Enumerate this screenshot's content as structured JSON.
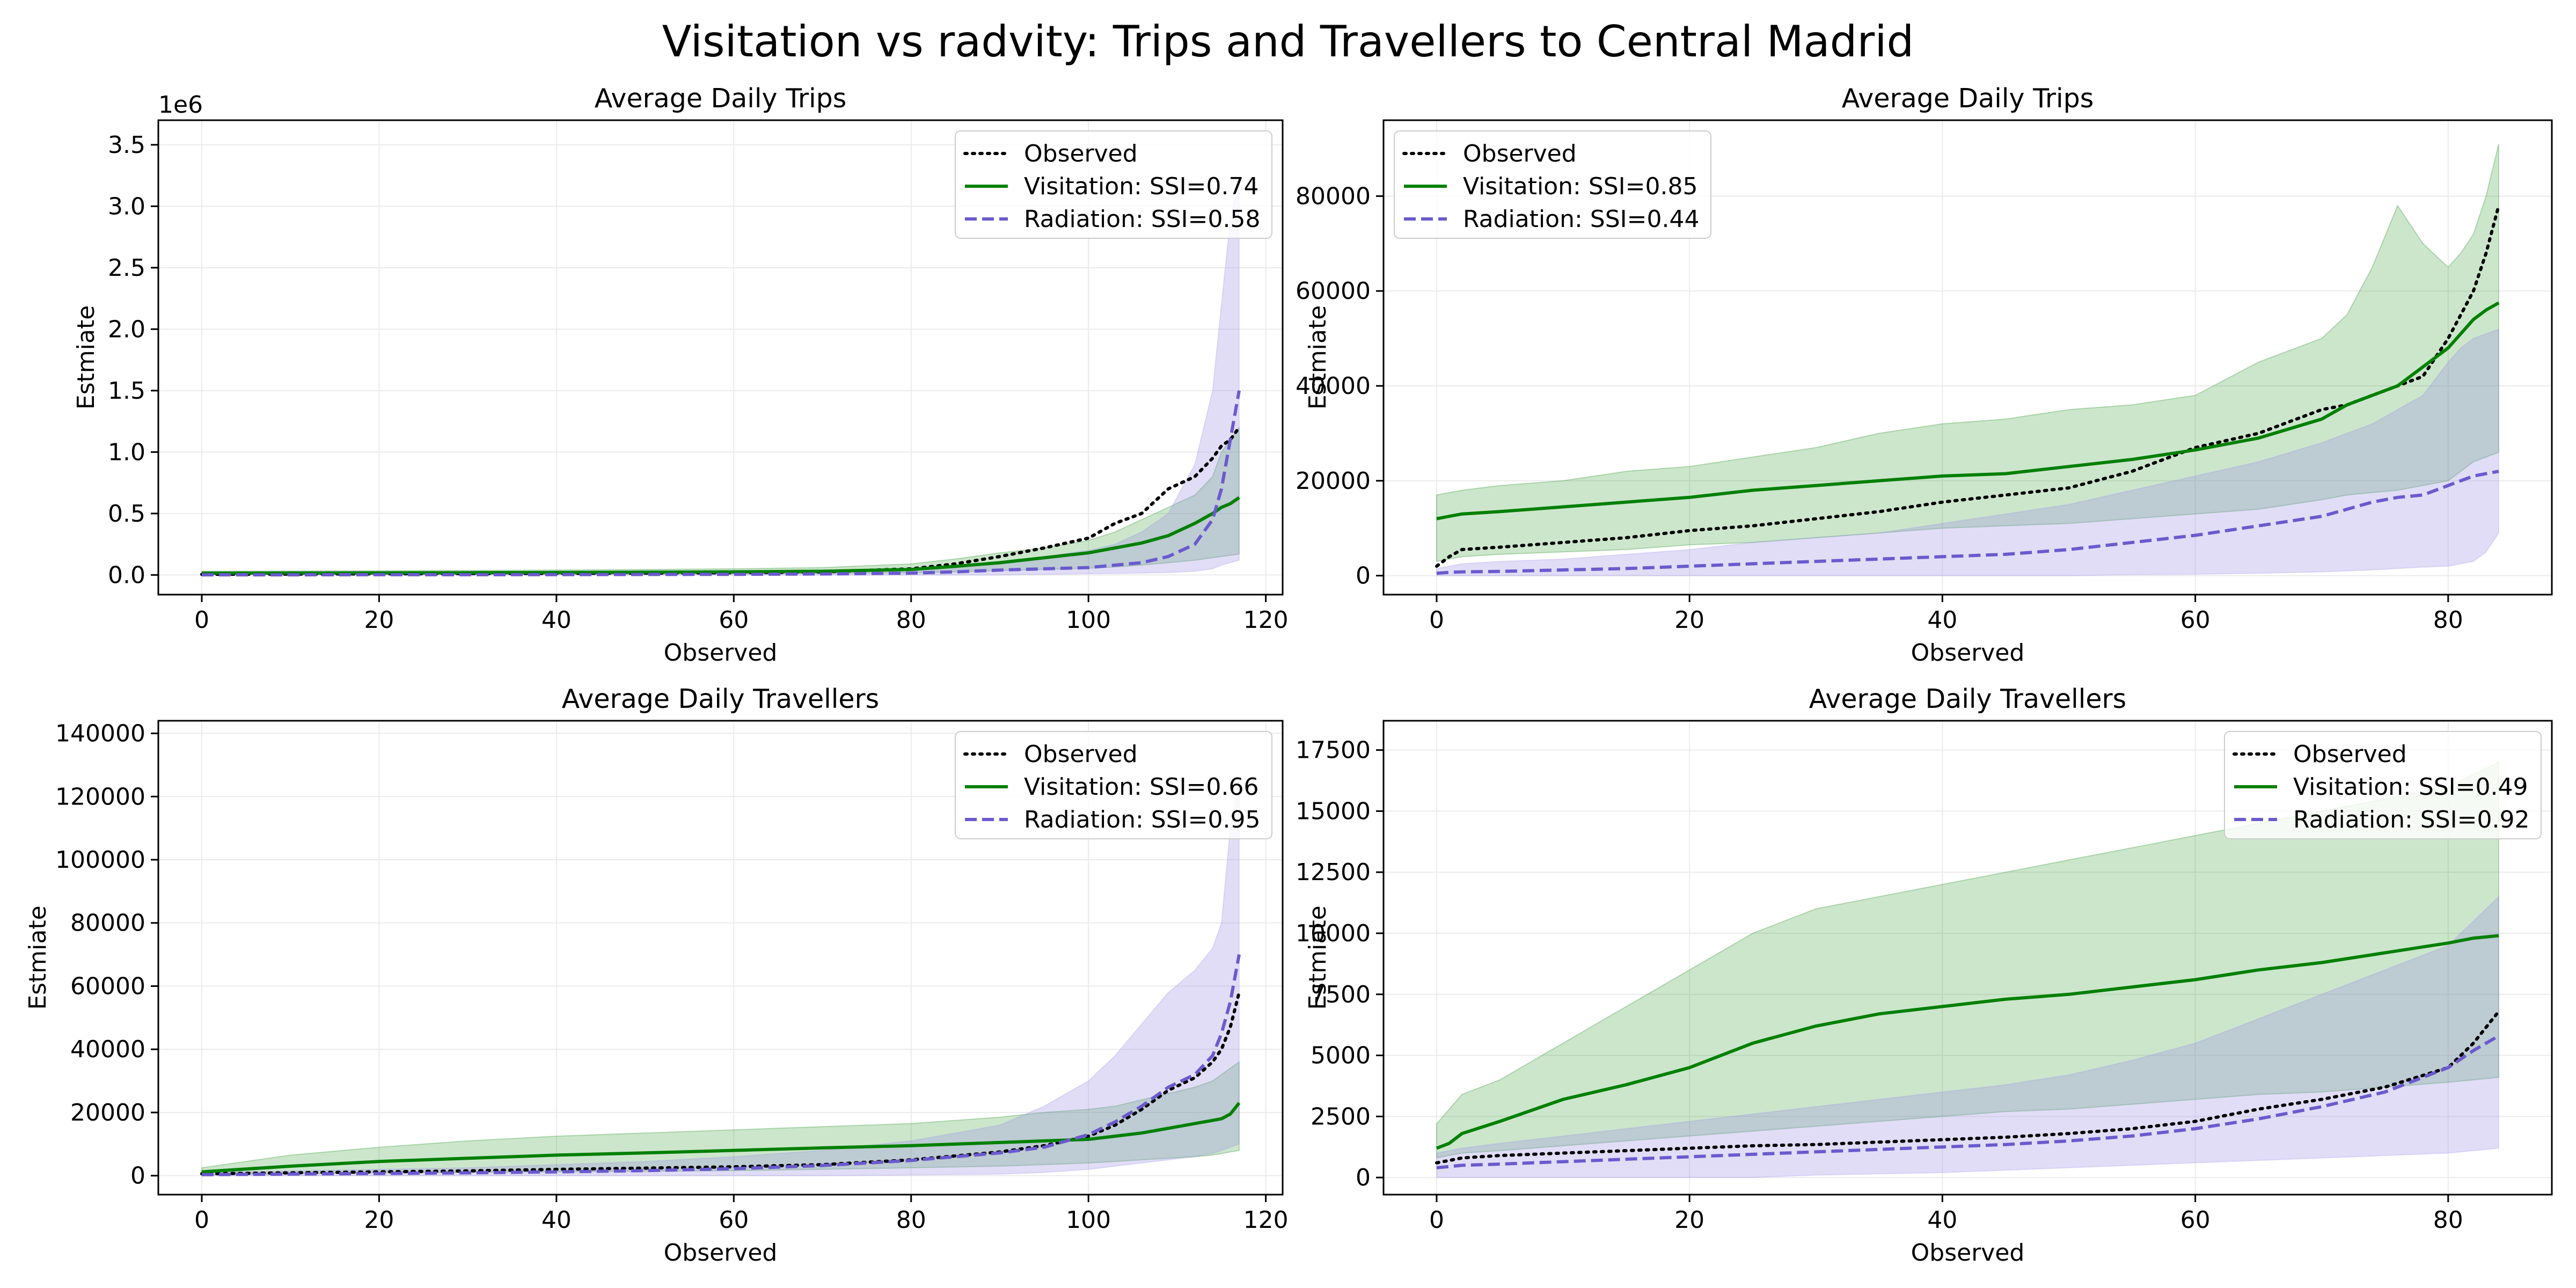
{
  "figure": {
    "title": "Visitation vs radvity: Trips and Travellers to Central Madrid"
  },
  "colors": {
    "observed": "#000000",
    "visitation": "#008000",
    "radiation": "#6a5acd",
    "visitation_band": "#008000",
    "radiation_band": "#9b8fe6",
    "grid": "#ebebeb"
  },
  "chart_data": [
    {
      "type": "line",
      "title": "Average Daily Trips",
      "xlabel": "Observed",
      "ylabel": "Estmiate",
      "offset_text": "1e6",
      "xlim": [
        -4.9,
        121.9
      ],
      "ylim": [
        -0.16,
        3.7
      ],
      "xticks": [
        0,
        20,
        40,
        60,
        80,
        100,
        120
      ],
      "xtick_labels": [
        "0",
        "20",
        "40",
        "60",
        "80",
        "100",
        "120"
      ],
      "yticks": [
        0,
        0.5,
        1.0,
        1.5,
        2.0,
        2.5,
        3.0,
        3.5
      ],
      "ytick_labels": [
        "0.0",
        "0.5",
        "1.0",
        "1.5",
        "2.0",
        "2.5",
        "3.0",
        "3.5"
      ],
      "grid": true,
      "legend_position": "top-right",
      "x": [
        0,
        10,
        20,
        30,
        40,
        50,
        60,
        70,
        80,
        85,
        90,
        95,
        100,
        103,
        106,
        109,
        112,
        114,
        115,
        116,
        117
      ],
      "series": [
        {
          "name": "Observed",
          "style": "dotted",
          "values": [
            0.005,
            0.007,
            0.009,
            0.011,
            0.013,
            0.015,
            0.018,
            0.025,
            0.05,
            0.09,
            0.15,
            0.22,
            0.3,
            0.42,
            0.5,
            0.7,
            0.8,
            0.95,
            1.05,
            1.1,
            1.2
          ]
        },
        {
          "name": "Visitation: SSI=0.74",
          "style": "solid",
          "values": [
            0.015,
            0.016,
            0.017,
            0.018,
            0.02,
            0.022,
            0.025,
            0.03,
            0.045,
            0.07,
            0.1,
            0.14,
            0.18,
            0.22,
            0.26,
            0.32,
            0.42,
            0.5,
            0.55,
            0.58,
            0.63
          ]
        },
        {
          "name": "Radiation: SSI=0.58",
          "style": "dashed",
          "values": [
            0.001,
            0.001,
            0.002,
            0.002,
            0.003,
            0.004,
            0.005,
            0.008,
            0.015,
            0.025,
            0.04,
            0.05,
            0.06,
            0.08,
            0.1,
            0.15,
            0.25,
            0.45,
            0.7,
            1.1,
            1.5
          ]
        }
      ],
      "bands": [
        {
          "series": "Visitation: SSI=0.74",
          "lower": [
            0.005,
            0.005,
            0.006,
            0.006,
            0.007,
            0.008,
            0.01,
            0.012,
            0.018,
            0.025,
            0.035,
            0.045,
            0.055,
            0.065,
            0.08,
            0.1,
            0.12,
            0.14,
            0.15,
            0.16,
            0.17
          ],
          "upper": [
            0.03,
            0.032,
            0.034,
            0.036,
            0.04,
            0.045,
            0.05,
            0.06,
            0.09,
            0.13,
            0.18,
            0.22,
            0.28,
            0.35,
            0.45,
            0.55,
            0.65,
            0.8,
            1.0,
            1.1,
            1.2
          ]
        },
        {
          "series": "Radiation: SSI=0.58",
          "lower": [
            0,
            0,
            0,
            0,
            0,
            0,
            0,
            0,
            0,
            0,
            0,
            0.005,
            0.01,
            0.012,
            0.015,
            0.02,
            0.03,
            0.05,
            0.08,
            0.1,
            0.12
          ],
          "upper": [
            0.003,
            0.004,
            0.005,
            0.006,
            0.008,
            0.01,
            0.015,
            0.025,
            0.04,
            0.06,
            0.1,
            0.15,
            0.2,
            0.25,
            0.35,
            0.5,
            0.9,
            1.5,
            2.2,
            2.9,
            3.2
          ]
        }
      ]
    },
    {
      "type": "line",
      "title": "Average Daily Trips",
      "xlabel": "Observed",
      "ylabel": "Estmiate",
      "xlim": [
        -4.2,
        88.2
      ],
      "ylim": [
        -4000,
        96000
      ],
      "xticks": [
        0,
        20,
        40,
        60,
        80
      ],
      "xtick_labels": [
        "0",
        "20",
        "40",
        "60",
        "80"
      ],
      "yticks": [
        0,
        20000,
        40000,
        60000,
        80000
      ],
      "ytick_labels": [
        "0",
        "20000",
        "40000",
        "60000",
        "80000"
      ],
      "grid": true,
      "legend_position": "top-left",
      "x": [
        0,
        1,
        2,
        5,
        10,
        15,
        20,
        25,
        30,
        35,
        40,
        45,
        50,
        55,
        60,
        65,
        70,
        72,
        74,
        76,
        78,
        80,
        81,
        82,
        83,
        84
      ],
      "series": [
        {
          "name": "Observed",
          "style": "dotted",
          "values": [
            2000,
            4000,
            5500,
            6000,
            7000,
            8000,
            9500,
            10500,
            12000,
            13500,
            15500,
            17000,
            18500,
            22000,
            27000,
            30000,
            35000,
            36000,
            38000,
            40000,
            42000,
            50000,
            55000,
            60000,
            68000,
            78000
          ]
        },
        {
          "name": "Visitation: SSI=0.85",
          "style": "solid",
          "values": [
            12000,
            12500,
            13000,
            13500,
            14500,
            15500,
            16500,
            18000,
            19000,
            20000,
            21000,
            21500,
            23000,
            24500,
            26500,
            29000,
            33000,
            36000,
            38000,
            40000,
            44000,
            48000,
            51000,
            54000,
            56000,
            57500
          ]
        },
        {
          "name": "Radiation: SSI=0.44",
          "style": "dashed",
          "values": [
            500,
            700,
            800,
            900,
            1200,
            1500,
            2000,
            2500,
            3000,
            3500,
            4000,
            4500,
            5500,
            7000,
            8500,
            10500,
            12500,
            14000,
            15500,
            16500,
            17000,
            19000,
            20000,
            21000,
            21500,
            22000
          ]
        }
      ],
      "bands": [
        {
          "series": "Visitation: SSI=0.85",
          "lower": [
            3000,
            3500,
            4000,
            4500,
            5000,
            5500,
            6500,
            7000,
            8000,
            9000,
            10000,
            10500,
            11000,
            12000,
            13000,
            14000,
            16000,
            17000,
            17500,
            18000,
            19000,
            20000,
            22000,
            24000,
            25000,
            26000
          ],
          "upper": [
            17000,
            17500,
            18000,
            19000,
            20000,
            22000,
            23000,
            25000,
            27000,
            30000,
            32000,
            33000,
            35000,
            36000,
            38000,
            45000,
            50000,
            55000,
            65000,
            78000,
            70000,
            65000,
            68000,
            72000,
            80000,
            91000
          ]
        },
        {
          "series": "Radiation: SSI=0.44",
          "lower": [
            0,
            0,
            0,
            0,
            0,
            0,
            0,
            0,
            0,
            0,
            0,
            0,
            0,
            200,
            300,
            500,
            800,
            1000,
            1200,
            1500,
            1800,
            2000,
            2500,
            3000,
            5000,
            9000
          ],
          "upper": [
            1500,
            2000,
            2500,
            3000,
            3500,
            4500,
            5500,
            7000,
            8000,
            9000,
            11000,
            13000,
            15000,
            18000,
            21000,
            24000,
            28000,
            30000,
            32000,
            35000,
            38000,
            45000,
            48000,
            50000,
            51000,
            52000
          ]
        }
      ]
    },
    {
      "type": "line",
      "title": "Average Daily Travellers",
      "xlabel": "Observed",
      "ylabel": "Estmiate",
      "xlim": [
        -4.9,
        121.9
      ],
      "ylim": [
        -6000,
        144000
      ],
      "xticks": [
        0,
        20,
        40,
        60,
        80,
        100,
        120
      ],
      "xtick_labels": [
        "0",
        "20",
        "40",
        "60",
        "80",
        "100",
        "120"
      ],
      "yticks": [
        0,
        20000,
        40000,
        60000,
        80000,
        100000,
        120000,
        140000
      ],
      "ytick_labels": [
        "0",
        "20000",
        "40000",
        "60000",
        "80000",
        "100000",
        "120000",
        "140000"
      ],
      "grid": true,
      "legend_position": "top-right",
      "x": [
        0,
        10,
        20,
        30,
        40,
        50,
        60,
        70,
        80,
        90,
        95,
        100,
        103,
        106,
        109,
        112,
        114,
        115,
        116,
        117
      ],
      "series": [
        {
          "name": "Observed",
          "style": "dotted",
          "values": [
            600,
            900,
            1200,
            1500,
            2000,
            2400,
            2800,
            3500,
            5000,
            7500,
            9500,
            12500,
            16000,
            21000,
            27000,
            31000,
            36000,
            40000,
            47000,
            58000
          ]
        },
        {
          "name": "Visitation: SSI=0.66",
          "style": "solid",
          "values": [
            1200,
            3000,
            4500,
            5500,
            6500,
            7200,
            8000,
            8800,
            9500,
            10500,
            11000,
            11500,
            12500,
            13500,
            15000,
            16500,
            17500,
            18000,
            19500,
            23000
          ]
        },
        {
          "name": "Radiation: SSI=0.95",
          "style": "dashed",
          "values": [
            300,
            500,
            700,
            900,
            1200,
            1600,
            2200,
            3200,
            4800,
            7200,
            9000,
            13000,
            17000,
            22000,
            28000,
            32000,
            38000,
            45000,
            55000,
            70000
          ]
        }
      ],
      "bands": [
        {
          "series": "Visitation: SSI=0.66",
          "lower": [
            200,
            600,
            900,
            1000,
            1200,
            1400,
            1600,
            2000,
            2500,
            3000,
            3500,
            4000,
            4500,
            5000,
            5500,
            6000,
            6500,
            7000,
            7500,
            8000
          ],
          "upper": [
            2500,
            6500,
            9000,
            11000,
            12500,
            13500,
            14500,
            15500,
            16500,
            18500,
            20000,
            21000,
            22000,
            24000,
            26000,
            28000,
            30000,
            32000,
            34000,
            36000
          ]
        },
        {
          "series": "Radiation: SSI=0.95",
          "lower": [
            0,
            0,
            0,
            0,
            0,
            0,
            0,
            0,
            200,
            500,
            1000,
            2000,
            3000,
            4000,
            5000,
            6000,
            7000,
            8000,
            9000,
            10000
          ],
          "upper": [
            1000,
            1500,
            2000,
            2500,
            3500,
            4500,
            6000,
            8000,
            11000,
            16000,
            22000,
            30000,
            38000,
            48000,
            58000,
            65000,
            72000,
            80000,
            110000,
            125000
          ]
        }
      ]
    },
    {
      "type": "line",
      "title": "Average Daily Travellers",
      "xlabel": "Observed",
      "ylabel": "Estmiate",
      "xlim": [
        -4.2,
        88.2
      ],
      "ylim": [
        -700,
        18700
      ],
      "xticks": [
        0,
        20,
        40,
        60,
        80
      ],
      "xtick_labels": [
        "0",
        "20",
        "40",
        "60",
        "80"
      ],
      "yticks": [
        0,
        2500,
        5000,
        7500,
        10000,
        12500,
        15000,
        17500
      ],
      "ytick_labels": [
        "0",
        "2500",
        "5000",
        "7500",
        "10000",
        "12500",
        "15000",
        "17500"
      ],
      "grid": true,
      "legend_position": "top-right",
      "x": [
        0,
        1,
        2,
        5,
        10,
        15,
        20,
        25,
        30,
        35,
        40,
        45,
        50,
        55,
        60,
        65,
        70,
        75,
        80,
        82,
        84
      ],
      "series": [
        {
          "name": "Observed",
          "style": "dotted",
          "values": [
            600,
            700,
            800,
            900,
            1000,
            1100,
            1200,
            1300,
            1350,
            1450,
            1550,
            1650,
            1800,
            2000,
            2300,
            2800,
            3200,
            3700,
            4500,
            5500,
            6800
          ]
        },
        {
          "name": "Visitation: SSI=0.49",
          "style": "solid",
          "values": [
            1200,
            1400,
            1800,
            2300,
            3200,
            3800,
            4500,
            5500,
            6200,
            6700,
            7000,
            7300,
            7500,
            7800,
            8100,
            8500,
            8800,
            9200,
            9600,
            9800,
            9900
          ]
        },
        {
          "name": "Radiation: SSI=0.92",
          "style": "dashed",
          "values": [
            400,
            450,
            500,
            550,
            650,
            750,
            850,
            950,
            1050,
            1150,
            1250,
            1350,
            1500,
            1700,
            2000,
            2400,
            2900,
            3500,
            4500,
            5200,
            5800
          ]
        }
      ],
      "bands": [
        {
          "series": "Visitation: SSI=0.49",
          "lower": [
            800,
            900,
            1000,
            1100,
            1300,
            1500,
            1700,
            1900,
            2100,
            2300,
            2500,
            2700,
            2800,
            3000,
            3200,
            3400,
            3500,
            3700,
            3900,
            4000,
            4100
          ],
          "upper": [
            2200,
            2800,
            3400,
            4000,
            5500,
            7000,
            8500,
            10000,
            11000,
            11500,
            12000,
            12500,
            13000,
            13500,
            14000,
            14500,
            15000,
            15500,
            16000,
            16500,
            17000
          ]
        },
        {
          "series": "Radiation: SSI=0.92",
          "lower": [
            0,
            0,
            0,
            0,
            0,
            0,
            0,
            0,
            100,
            150,
            200,
            300,
            400,
            500,
            600,
            700,
            800,
            900,
            1000,
            1100,
            1200
          ],
          "upper": [
            1000,
            1100,
            1200,
            1400,
            1700,
            2000,
            2300,
            2600,
            2900,
            3200,
            3500,
            3800,
            4200,
            4800,
            5500,
            6500,
            7500,
            8500,
            9500,
            10500,
            11500
          ]
        }
      ]
    }
  ]
}
